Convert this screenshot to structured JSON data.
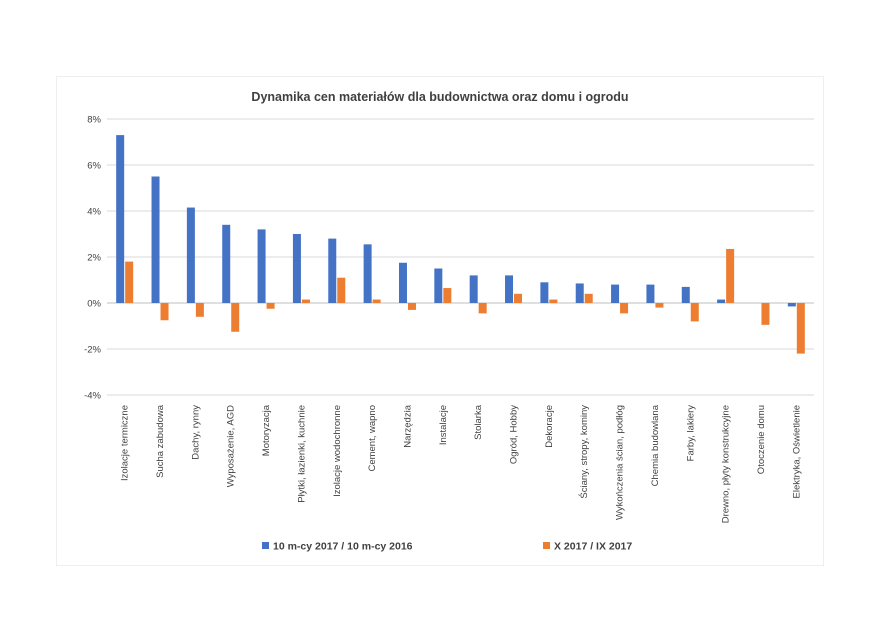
{
  "chart_data": {
    "type": "bar",
    "title": "Dynamika cen materiałów dla budownictwa oraz domu i ogrodu",
    "xlabel": "",
    "ylabel": "",
    "ylim": [
      -4,
      8
    ],
    "yticks": [
      8,
      6,
      4,
      2,
      0,
      -2,
      -4
    ],
    "ytick_labels": [
      "8%",
      "6%",
      "4%",
      "2%",
      "0%",
      "-2%",
      "-4%"
    ],
    "grid": true,
    "legend_position": "bottom",
    "categories": [
      "Izolacje termiczne",
      "Sucha zabudowa",
      "Dachy, rynny",
      "Wyposażenie, AGD",
      "Motoryzacja",
      "Płytki, łazienki, kuchnie",
      "Izolacje wodochronne",
      "Cement, wapno",
      "Narzędzia",
      "Instalacje",
      "Stolarka",
      "Ogród, Hobby",
      "Dekoracje",
      "Ściany, stropy, kominy",
      "Wykończenia ścian, podłóg",
      "Chemia budowlana",
      "Farby, lakiery",
      "Drewno, płyty konstrukcyjne",
      "Otoczenie domu",
      "Elektryka, Oświetlenie"
    ],
    "series": [
      {
        "name": "10 m-cy 2017 / 10 m-cy 2016",
        "color": "#4472c4",
        "values": [
          7.3,
          5.5,
          4.15,
          3.4,
          3.2,
          3.0,
          2.8,
          2.55,
          1.75,
          1.5,
          1.2,
          1.2,
          0.9,
          0.85,
          0.8,
          0.8,
          0.7,
          0.15,
          0.0,
          -0.15
        ]
      },
      {
        "name": "X 2017 / IX 2017",
        "color": "#ed7d31",
        "values": [
          1.8,
          -0.75,
          -0.6,
          -1.25,
          -0.25,
          0.15,
          1.1,
          0.15,
          -0.3,
          0.65,
          -0.45,
          0.4,
          0.15,
          0.4,
          -0.45,
          -0.2,
          -0.8,
          2.35,
          -0.95,
          -2.2
        ]
      }
    ]
  }
}
